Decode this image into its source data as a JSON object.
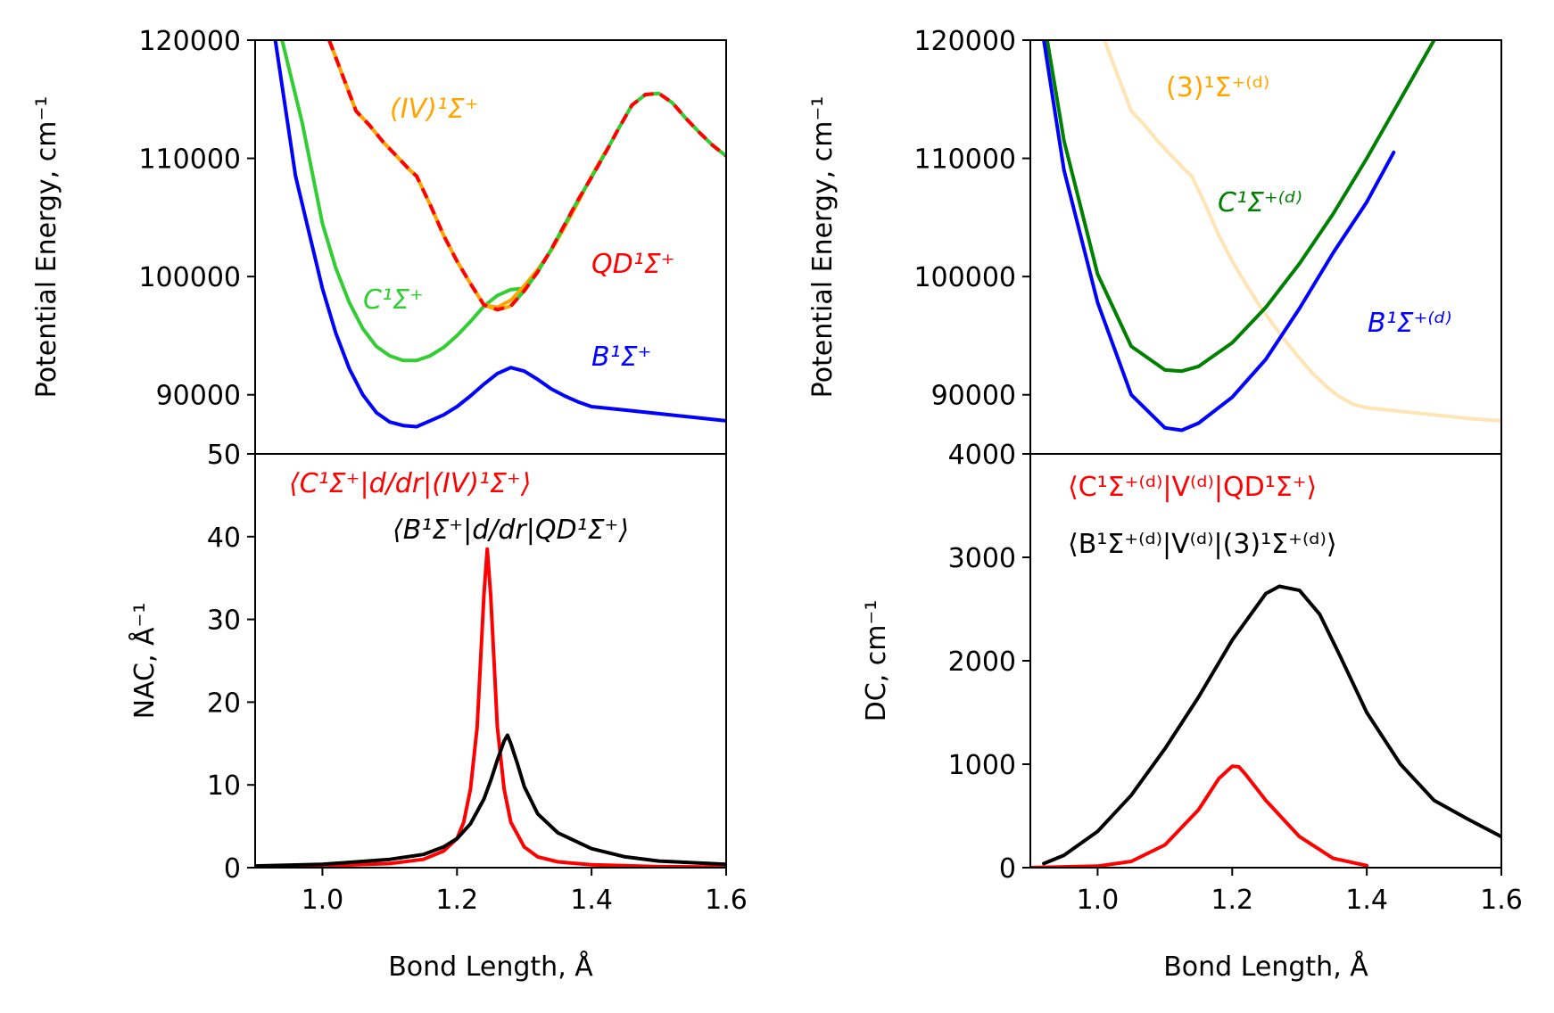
{
  "colors": {
    "B": "#0000ff",
    "C_left": "#32cd32",
    "IV": "#ffa500",
    "QD": "#ff0000",
    "C_right": "#008000",
    "three": "#ffe4b5",
    "nac_red": "#ff0000",
    "nac_black": "#000000"
  },
  "chart_data": [
    {
      "type": "line",
      "panel": "top-left",
      "xlabel": "",
      "ylabel": "Potential Energy, cm⁻¹",
      "xlim": [
        0.9,
        1.6
      ],
      "ylim": [
        85000,
        120000
      ],
      "yticks": [
        "90000",
        "100000",
        "110000",
        "120000"
      ],
      "series": [
        {
          "name": "B¹Σ⁺",
          "color": "#0000ff",
          "style": "solid",
          "x": [
            0.93,
            0.96,
            1.0,
            1.02,
            1.04,
            1.06,
            1.08,
            1.1,
            1.12,
            1.14,
            1.16,
            1.18,
            1.2,
            1.22,
            1.24,
            1.26,
            1.28,
            1.3,
            1.32,
            1.34,
            1.36,
            1.38,
            1.4,
            1.45,
            1.5,
            1.55,
            1.6
          ],
          "y": [
            120000,
            108500,
            99000,
            95200,
            92200,
            90000,
            88500,
            87700,
            87400,
            87300,
            87800,
            88300,
            89000,
            89900,
            90900,
            91800,
            92300,
            92000,
            91300,
            90500,
            89900,
            89400,
            89000,
            88700,
            88400,
            88100,
            87800
          ]
        },
        {
          "name": "C¹Σ⁺",
          "color": "#32cd32",
          "style": "solid",
          "x": [
            0.94,
            0.97,
            1.0,
            1.02,
            1.04,
            1.06,
            1.08,
            1.1,
            1.12,
            1.14,
            1.16,
            1.18,
            1.2,
            1.22,
            1.24,
            1.26,
            1.28,
            1.3
          ],
          "y": [
            120000,
            113000,
            104500,
            100700,
            97800,
            95600,
            94100,
            93300,
            92900,
            92900,
            93300,
            94000,
            95000,
            96200,
            97500,
            98400,
            98900,
            99000
          ]
        },
        {
          "name": "(IV)¹Σ⁺",
          "color": "#ffa500",
          "style": "solid",
          "x": [
            1.01,
            1.03,
            1.05,
            1.07,
            1.09,
            1.11,
            1.13,
            1.14,
            1.16,
            1.18,
            1.2,
            1.22,
            1.24,
            1.26,
            1.28,
            1.3,
            1.32,
            1.34,
            1.36,
            1.38,
            1.4,
            1.42
          ],
          "y": [
            120000,
            117000,
            114000,
            112800,
            111400,
            110200,
            109000,
            108500,
            106100,
            103500,
            101300,
            99400,
            97600,
            97400,
            98000,
            99200,
            100600,
            102200,
            104200,
            106300,
            108500,
            110500
          ]
        },
        {
          "name": "QD¹Σ⁺",
          "color": "#ff0000",
          "style": "dash-on-orange",
          "x": [
            1.01,
            1.03,
            1.05,
            1.07,
            1.09,
            1.11,
            1.13,
            1.14,
            1.16,
            1.18,
            1.2,
            1.22,
            1.24,
            1.26,
            1.28
          ],
          "y": [
            120000,
            117000,
            114000,
            112800,
            111400,
            110200,
            109000,
            108500,
            106100,
            103500,
            101300,
            99400,
            97600,
            97200,
            97500
          ]
        },
        {
          "name": "QD¹Σ⁺",
          "color": "#ff0000",
          "style": "dash-on-green",
          "x": [
            1.28,
            1.3,
            1.32,
            1.34,
            1.36,
            1.38,
            1.4,
            1.42,
            1.44,
            1.46,
            1.48,
            1.5,
            1.52,
            1.54,
            1.56,
            1.58,
            1.6
          ],
          "y": [
            97500,
            98800,
            100400,
            102300,
            104400,
            106500,
            108400,
            110400,
            112500,
            114500,
            115400,
            115500,
            114700,
            113400,
            112200,
            111100,
            110200
          ]
        }
      ]
    },
    {
      "type": "line",
      "panel": "bottom-left",
      "xlabel": "Bond Length, Å",
      "ylabel": "NAC, Å⁻¹",
      "xlim": [
        0.9,
        1.6
      ],
      "ylim": [
        0,
        50
      ],
      "xticks": [
        "1.0",
        "1.2",
        "1.4",
        "1.6"
      ],
      "yticks": [
        "0",
        "10",
        "20",
        "30",
        "40",
        "50"
      ],
      "series": [
        {
          "name": "⟨C¹Σ⁺|d/dr|(IV)¹Σ⁺⟩",
          "color": "#ff0000",
          "x": [
            0.9,
            1.0,
            1.1,
            1.15,
            1.18,
            1.2,
            1.21,
            1.22,
            1.23,
            1.235,
            1.24,
            1.245,
            1.25,
            1.255,
            1.26,
            1.27,
            1.28,
            1.3,
            1.32,
            1.35,
            1.4,
            1.5,
            1.6
          ],
          "y": [
            0.1,
            0.2,
            0.5,
            1.0,
            2.0,
            3.5,
            5.5,
            9.5,
            17.0,
            25.0,
            33.0,
            38.5,
            33.0,
            25.0,
            17.0,
            9.5,
            5.5,
            2.5,
            1.3,
            0.7,
            0.35,
            0.12,
            0.06
          ]
        },
        {
          "name": "⟨B¹Σ⁺|d/dr|QD¹Σ⁺⟩",
          "color": "#000000",
          "x": [
            0.9,
            1.0,
            1.1,
            1.15,
            1.18,
            1.2,
            1.22,
            1.24,
            1.25,
            1.26,
            1.27,
            1.275,
            1.28,
            1.29,
            1.3,
            1.32,
            1.35,
            1.4,
            1.45,
            1.5,
            1.6
          ],
          "y": [
            0.2,
            0.4,
            1.0,
            1.6,
            2.5,
            3.5,
            5.3,
            8.3,
            10.5,
            13.0,
            15.3,
            16.0,
            15.0,
            12.5,
            9.8,
            6.5,
            4.2,
            2.3,
            1.3,
            0.8,
            0.4
          ]
        }
      ]
    },
    {
      "type": "line",
      "panel": "top-right",
      "xlabel": "",
      "ylabel": "Potential Energy, cm⁻¹",
      "xlim": [
        0.9,
        1.6
      ],
      "ylim": [
        85000,
        120000
      ],
      "yticks": [
        "90000",
        "100000",
        "110000",
        "120000"
      ],
      "series": [
        {
          "name": "(3)¹Σ⁺⁽ᵈ⁾",
          "color": "#ffe4b5",
          "x": [
            1.01,
            1.03,
            1.05,
            1.07,
            1.09,
            1.11,
            1.13,
            1.14,
            1.16,
            1.18,
            1.2,
            1.22,
            1.24,
            1.26,
            1.28,
            1.3,
            1.32,
            1.34,
            1.36,
            1.38,
            1.4,
            1.45,
            1.5,
            1.55,
            1.6
          ],
          "y": [
            120000,
            117000,
            114000,
            112800,
            111400,
            110200,
            109000,
            108500,
            106100,
            103500,
            101300,
            99400,
            97600,
            96000,
            94500,
            93100,
            91800,
            90700,
            89800,
            89200,
            88900,
            88600,
            88300,
            88000,
            87800
          ]
        },
        {
          "name": "C¹Σ⁺⁽ᵈ⁾",
          "color": "#008000",
          "x": [
            0.925,
            0.95,
            1.0,
            1.05,
            1.1,
            1.125,
            1.15,
            1.2,
            1.25,
            1.3,
            1.35,
            1.4,
            1.45,
            1.5
          ],
          "y": [
            120000,
            111500,
            100200,
            94100,
            92100,
            92000,
            92400,
            94400,
            97400,
            101100,
            105300,
            110000,
            115000,
            120000
          ]
        },
        {
          "name": "B¹Σ⁺⁽ᵈ⁾",
          "color": "#0000ff",
          "x": [
            0.92,
            0.95,
            1.0,
            1.05,
            1.1,
            1.125,
            1.15,
            1.2,
            1.25,
            1.3,
            1.35,
            1.4,
            1.44
          ],
          "y": [
            120000,
            109000,
            97800,
            90000,
            87200,
            87000,
            87600,
            89800,
            93000,
            97300,
            102000,
            106300,
            110500
          ]
        }
      ]
    },
    {
      "type": "line",
      "panel": "bottom-right",
      "xlabel": "Bond Length, Å",
      "ylabel": "DC, cm⁻¹",
      "xlim": [
        0.9,
        1.6
      ],
      "ylim": [
        0,
        4000
      ],
      "xticks": [
        "1.0",
        "1.2",
        "1.4",
        "1.6"
      ],
      "yticks": [
        "0",
        "1000",
        "2000",
        "3000",
        "4000"
      ],
      "series": [
        {
          "name": "⟨C¹Σ⁺⁽ᵈ⁾|V⁽ᵈ⁾|QD¹Σ⁺⟩",
          "color": "#ff0000",
          "x": [
            0.9,
            1.0,
            1.05,
            1.1,
            1.15,
            1.18,
            1.2,
            1.21,
            1.22,
            1.25,
            1.28,
            1.3,
            1.35,
            1.4
          ],
          "y": [
            0,
            15,
            60,
            220,
            560,
            860,
            980,
            975,
            900,
            650,
            440,
            300,
            90,
            20
          ]
        },
        {
          "name": "⟨B¹Σ⁺⁽ᵈ⁾|V⁽ᵈ⁾|(3)¹Σ⁺⁽ᵈ⁾⟩",
          "color": "#000000",
          "x": [
            0.92,
            0.95,
            1.0,
            1.05,
            1.1,
            1.15,
            1.2,
            1.25,
            1.27,
            1.3,
            1.33,
            1.36,
            1.4,
            1.45,
            1.5,
            1.55,
            1.6
          ],
          "y": [
            40,
            120,
            350,
            700,
            1150,
            1650,
            2200,
            2650,
            2720,
            2680,
            2450,
            2050,
            1500,
            1000,
            650,
            470,
            300
          ]
        }
      ]
    }
  ]
}
